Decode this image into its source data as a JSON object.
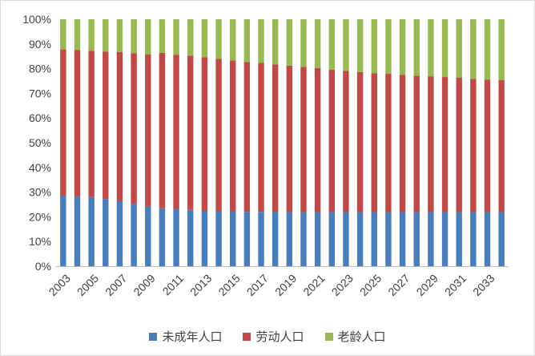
{
  "chart_data": {
    "type": "bar",
    "stacked": true,
    "percent": true,
    "categories": [
      "2003",
      "2004",
      "2005",
      "2006",
      "2007",
      "2008",
      "2009",
      "2010",
      "2011",
      "2012",
      "2013",
      "2014",
      "2015",
      "2016",
      "2017",
      "2018",
      "2019",
      "2020",
      "2021",
      "2022",
      "2023",
      "2024",
      "2025",
      "2026",
      "2027",
      "2028",
      "2029",
      "2030",
      "2031",
      "2032",
      "2033",
      "2034"
    ],
    "x_tick_labels": [
      "2003",
      "2005",
      "2007",
      "2009",
      "2011",
      "2013",
      "2015",
      "2017",
      "2019",
      "2021",
      "2023",
      "2025",
      "2027",
      "2029",
      "2031",
      "2033"
    ],
    "y_tick_labels": [
      "0%",
      "10%",
      "20%",
      "30%",
      "40%",
      "50%",
      "60%",
      "70%",
      "80%",
      "90%",
      "100%"
    ],
    "ylim": [
      0,
      100
    ],
    "grid": false,
    "legend_position": "bottom",
    "series": [
      {
        "name": "未成年人口",
        "color": "#4a7ebb",
        "values": [
          28.6,
          28.2,
          28.0,
          27.2,
          26.3,
          25.2,
          24.2,
          23.5,
          23.2,
          22.8,
          22.4,
          22.1,
          22.1,
          22.0,
          22.0,
          21.9,
          21.9,
          21.9,
          21.9,
          21.9,
          21.9,
          21.9,
          21.9,
          21.9,
          21.9,
          21.9,
          21.9,
          21.9,
          21.9,
          21.9,
          21.9,
          21.9
        ]
      },
      {
        "name": "劳动人口",
        "color": "#be4b48",
        "values": [
          59.2,
          59.4,
          59.2,
          59.7,
          60.4,
          61.1,
          61.5,
          62.9,
          62.4,
          62.5,
          62.2,
          61.9,
          61.2,
          60.7,
          60.3,
          59.8,
          59.3,
          58.8,
          58.3,
          57.7,
          57.2,
          56.7,
          56.2,
          56.0,
          55.6,
          55.2,
          55.0,
          54.7,
          54.4,
          54.0,
          53.7,
          53.5
        ]
      },
      {
        "name": "老龄人口",
        "color": "#98b954",
        "values": [
          12.2,
          12.4,
          12.8,
          13.1,
          13.3,
          13.7,
          14.3,
          13.6,
          14.4,
          14.7,
          15.4,
          16.0,
          16.7,
          17.3,
          17.7,
          18.3,
          18.8,
          19.3,
          19.8,
          20.4,
          20.9,
          21.4,
          21.9,
          22.1,
          22.5,
          22.9,
          23.1,
          23.4,
          23.7,
          24.1,
          24.4,
          24.6
        ]
      }
    ]
  }
}
